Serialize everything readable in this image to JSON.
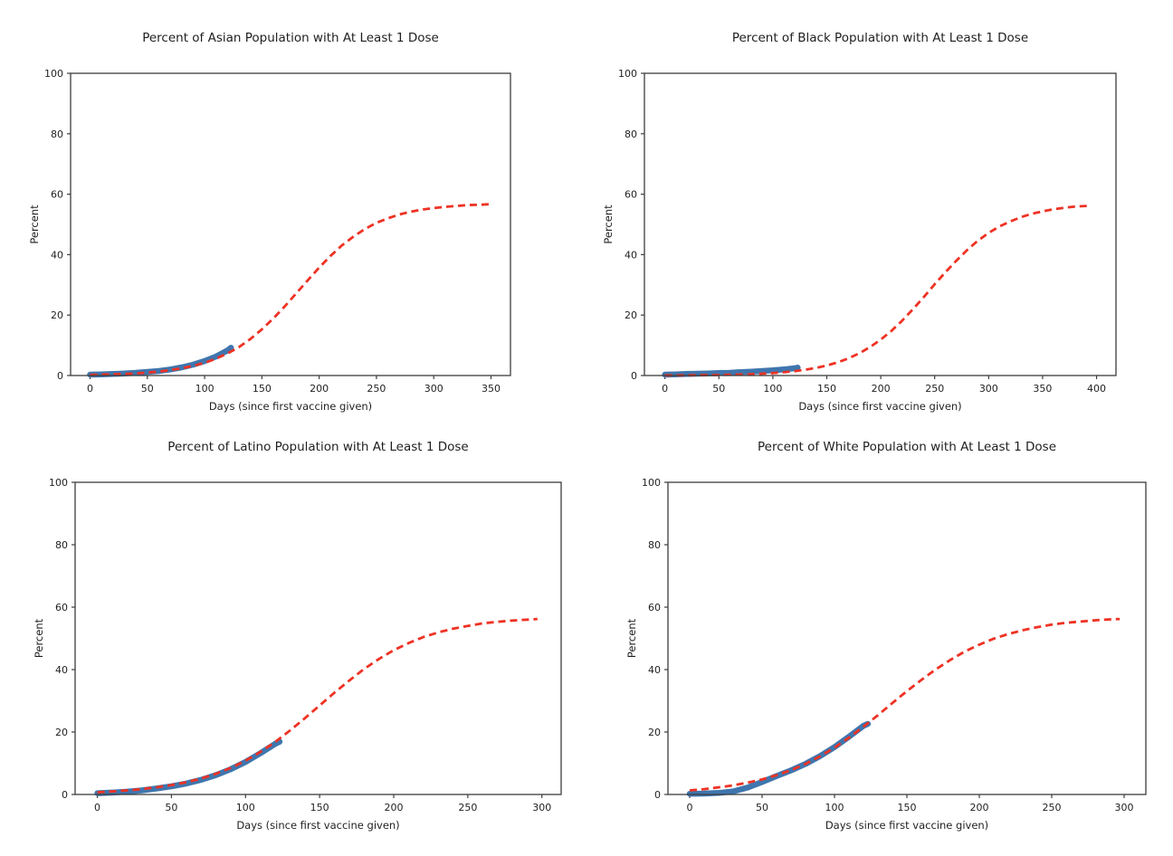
{
  "figure": {
    "background": "#ffffff",
    "text_color": "#1f1f1f",
    "spine_color": "#3c3c3c"
  },
  "chart_data": [
    {
      "id": "asian",
      "type": "line",
      "title": "Percent of Asian Population with At Least 1 Dose",
      "xlabel": "Days (since first vaccine given)",
      "ylabel": "Percent",
      "xlim": [
        -17,
        367
      ],
      "ylim": [
        0,
        100
      ],
      "xticks": [
        0,
        50,
        100,
        150,
        200,
        250,
        300,
        350
      ],
      "yticks": [
        0,
        20,
        40,
        60,
        80,
        100
      ],
      "grid": false,
      "legend": null,
      "series": [
        {
          "name": "observed",
          "style": "solid",
          "color": "#3f76ae",
          "width": 6.5,
          "x": [
            0,
            10,
            20,
            30,
            40,
            50,
            60,
            70,
            80,
            90,
            100,
            110,
            120,
            123
          ],
          "y": [
            0.3,
            0.4,
            0.5,
            0.7,
            0.9,
            1.2,
            1.5,
            2.0,
            2.7,
            3.6,
            4.8,
            6.3,
            8.3,
            9.2
          ]
        },
        {
          "name": "logistic_fit",
          "style": "dashed",
          "color": "#ee3224",
          "width": 2.8,
          "x": [
            0,
            10,
            20,
            30,
            40,
            50,
            60,
            70,
            80,
            90,
            100,
            110,
            120,
            130,
            140,
            150,
            160,
            170,
            180,
            190,
            200,
            210,
            220,
            230,
            240,
            250,
            260,
            270,
            280,
            290,
            300,
            310,
            320,
            330,
            340,
            350
          ],
          "y": [
            0.2,
            0.3,
            0.4,
            0.5,
            0.7,
            1.0,
            1.3,
            1.8,
            2.4,
            3.2,
            4.2,
            5.6,
            7.3,
            9.4,
            12.1,
            15.3,
            18.9,
            22.9,
            27.2,
            31.5,
            35.7,
            39.6,
            43.1,
            46.0,
            48.5,
            50.5,
            52.0,
            53.3,
            54.2,
            54.9,
            55.4,
            55.8,
            56.1,
            56.4,
            56.5,
            56.7
          ]
        }
      ]
    },
    {
      "id": "black",
      "type": "line",
      "title": "Percent of Black Population with At Least 1 Dose",
      "xlabel": "Days (since first vaccine given)",
      "ylabel": "Percent",
      "xlim": [
        -19,
        418
      ],
      "ylim": [
        0,
        100
      ],
      "xticks": [
        0,
        50,
        100,
        150,
        200,
        250,
        300,
        350,
        400
      ],
      "yticks": [
        0,
        20,
        40,
        60,
        80,
        100
      ],
      "grid": false,
      "legend": null,
      "series": [
        {
          "name": "observed",
          "style": "solid",
          "color": "#3f76ae",
          "width": 6.5,
          "x": [
            0,
            10,
            20,
            30,
            40,
            50,
            60,
            70,
            80,
            90,
            100,
            110,
            120,
            123
          ],
          "y": [
            0.3,
            0.4,
            0.5,
            0.6,
            0.7,
            0.8,
            0.9,
            1.1,
            1.3,
            1.5,
            1.7,
            2.0,
            2.4,
            2.6
          ]
        },
        {
          "name": "logistic_fit",
          "style": "dashed",
          "color": "#ee3224",
          "width": 2.8,
          "x": [
            0,
            10,
            20,
            30,
            40,
            50,
            60,
            70,
            80,
            90,
            100,
            110,
            120,
            130,
            140,
            150,
            160,
            170,
            180,
            190,
            200,
            210,
            220,
            230,
            240,
            250,
            260,
            270,
            280,
            290,
            300,
            310,
            320,
            330,
            340,
            350,
            360,
            370,
            380,
            390,
            395
          ],
          "y": [
            0.05,
            0.06,
            0.08,
            0.11,
            0.14,
            0.19,
            0.26,
            0.34,
            0.46,
            0.61,
            0.82,
            1.08,
            1.44,
            1.91,
            2.52,
            3.32,
            4.35,
            5.67,
            7.33,
            9.39,
            11.9,
            14.8,
            18.2,
            22.0,
            26.0,
            30.2,
            34.2,
            38.0,
            41.5,
            44.6,
            47.2,
            49.3,
            51.0,
            52.4,
            53.5,
            54.3,
            55.0,
            55.5,
            55.9,
            56.1,
            56.3
          ]
        }
      ]
    },
    {
      "id": "latino",
      "type": "line",
      "title": "Percent of Latino Population with At Least 1 Dose",
      "xlabel": "Days (since first vaccine given)",
      "ylabel": "Percent",
      "xlim": [
        -15,
        313
      ],
      "ylim": [
        0,
        100
      ],
      "xticks": [
        0,
        50,
        100,
        150,
        200,
        250,
        300
      ],
      "yticks": [
        0,
        20,
        40,
        60,
        80,
        100
      ],
      "grid": false,
      "legend": null,
      "series": [
        {
          "name": "observed",
          "style": "solid",
          "color": "#3f76ae",
          "width": 6.5,
          "x": [
            0,
            10,
            20,
            30,
            40,
            50,
            60,
            70,
            80,
            90,
            100,
            110,
            120,
            123
          ],
          "y": [
            0.4,
            0.6,
            0.9,
            1.3,
            1.9,
            2.6,
            3.5,
            4.7,
            6.2,
            8.1,
            10.4,
            13.2,
            16.2,
            16.9
          ]
        },
        {
          "name": "logistic_fit",
          "style": "dashed",
          "color": "#ee3224",
          "width": 2.8,
          "x": [
            0,
            10,
            20,
            30,
            40,
            50,
            60,
            70,
            80,
            90,
            100,
            110,
            120,
            130,
            140,
            150,
            160,
            170,
            180,
            190,
            200,
            210,
            220,
            230,
            240,
            250,
            260,
            270,
            280,
            290,
            297
          ],
          "y": [
            0.7,
            1.0,
            1.3,
            1.7,
            2.3,
            3.0,
            3.9,
            5.1,
            6.6,
            8.5,
            10.8,
            13.6,
            16.8,
            20.5,
            24.4,
            28.5,
            32.6,
            36.5,
            40.2,
            43.4,
            46.2,
            48.5,
            50.4,
            51.9,
            53.1,
            54.0,
            54.8,
            55.3,
            55.7,
            56.0,
            56.2
          ]
        }
      ]
    },
    {
      "id": "white",
      "type": "line",
      "title": "Percent of White Population with At Least 1 Dose",
      "xlabel": "Days (since first vaccine given)",
      "ylabel": "Percent",
      "xlim": [
        -15,
        315
      ],
      "ylim": [
        0,
        100
      ],
      "xticks": [
        0,
        50,
        100,
        150,
        200,
        250,
        300
      ],
      "yticks": [
        0,
        20,
        40,
        60,
        80,
        100
      ],
      "grid": false,
      "legend": null,
      "series": [
        {
          "name": "observed",
          "style": "solid",
          "color": "#3f76ae",
          "width": 6.5,
          "x": [
            0,
            10,
            20,
            30,
            40,
            50,
            60,
            70,
            80,
            90,
            100,
            110,
            120,
            123
          ],
          "y": [
            0.2,
            0.3,
            0.5,
            1.0,
            2.2,
            4.0,
            5.9,
            7.7,
            9.8,
            12.3,
            15.2,
            18.5,
            22.0,
            22.6
          ]
        },
        {
          "name": "logistic_fit",
          "style": "dashed",
          "color": "#ee3224",
          "width": 2.8,
          "x": [
            0,
            10,
            20,
            30,
            40,
            50,
            60,
            70,
            80,
            90,
            100,
            110,
            120,
            130,
            140,
            150,
            160,
            170,
            180,
            190,
            200,
            210,
            220,
            230,
            240,
            250,
            260,
            270,
            280,
            290,
            297
          ],
          "y": [
            1.3,
            1.7,
            2.3,
            2.9,
            3.8,
            4.8,
            6.2,
            7.8,
            9.8,
            12.2,
            15.0,
            18.2,
            21.7,
            25.4,
            29.3,
            33.1,
            36.7,
            40.1,
            43.1,
            45.8,
            48.0,
            49.9,
            51.4,
            52.6,
            53.6,
            54.4,
            55.0,
            55.4,
            55.8,
            56.1,
            56.2
          ]
        }
      ]
    }
  ]
}
